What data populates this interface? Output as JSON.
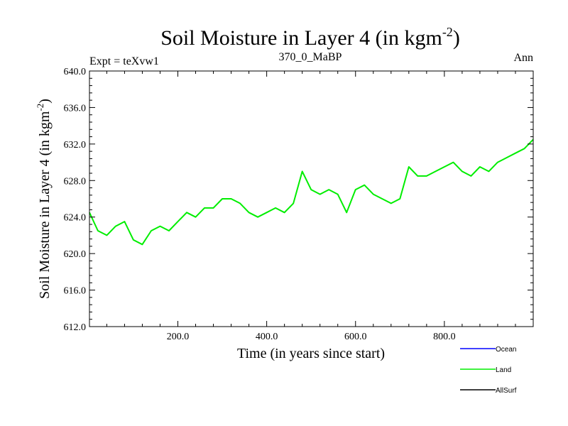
{
  "chart_data": {
    "type": "line",
    "title_main": "Soil Moisture in Layer 4 (in kgm",
    "title_sup": "-2",
    "title_close": ")",
    "subtitle_left": "Expt = teXvw1",
    "subtitle_center": "370_0_MaBP",
    "subtitle_right": "Ann",
    "xlabel": "Time (in years since start)",
    "ylabel_main": "Soil Moisture in Layer 4 (in kgm",
    "ylabel_sup": "-2",
    "ylabel_close": ")",
    "xlim": [
      1,
      1000
    ],
    "ylim": [
      612,
      640
    ],
    "x_ticks": [
      200,
      400,
      600,
      800
    ],
    "x_tick_labels": [
      "200.0",
      "400.0",
      "600.0",
      "800.0"
    ],
    "y_ticks": [
      612,
      616,
      620,
      624,
      628,
      632,
      636,
      640
    ],
    "y_tick_labels": [
      "612.0",
      "616.0",
      "620.0",
      "624.0",
      "628.0",
      "632.0",
      "636.0",
      "640.0"
    ],
    "legend": [
      {
        "name": "Ocean",
        "color": "#0000ff"
      },
      {
        "name": "Land",
        "color": "#00ee00"
      },
      {
        "name": "AllSurf",
        "color": "#000000"
      }
    ],
    "series": [
      {
        "name": "Land",
        "color": "#00ee00",
        "x": [
          1,
          20,
          40,
          60,
          80,
          100,
          120,
          140,
          160,
          180,
          200,
          220,
          240,
          260,
          280,
          300,
          320,
          340,
          360,
          380,
          400,
          420,
          440,
          460,
          480,
          500,
          520,
          540,
          560,
          580,
          600,
          620,
          640,
          660,
          680,
          700,
          720,
          740,
          760,
          780,
          800,
          820,
          840,
          860,
          880,
          900,
          920,
          940,
          960,
          980,
          1000
        ],
        "values": [
          624.5,
          622.5,
          622.0,
          623.0,
          623.5,
          621.5,
          621.0,
          622.5,
          623.0,
          622.5,
          623.5,
          624.5,
          624.0,
          625.0,
          625.0,
          626.0,
          626.0,
          625.5,
          624.5,
          624.0,
          624.5,
          625.0,
          624.5,
          625.5,
          629.0,
          627.0,
          626.5,
          627.0,
          626.5,
          624.5,
          627.0,
          627.5,
          626.5,
          626.0,
          625.5,
          626.0,
          629.5,
          628.5,
          628.5,
          629.0,
          629.5,
          630.0,
          629.0,
          628.5,
          629.5,
          629.0,
          630.0,
          630.5,
          631.0,
          631.5,
          632.5
        ]
      }
    ]
  }
}
